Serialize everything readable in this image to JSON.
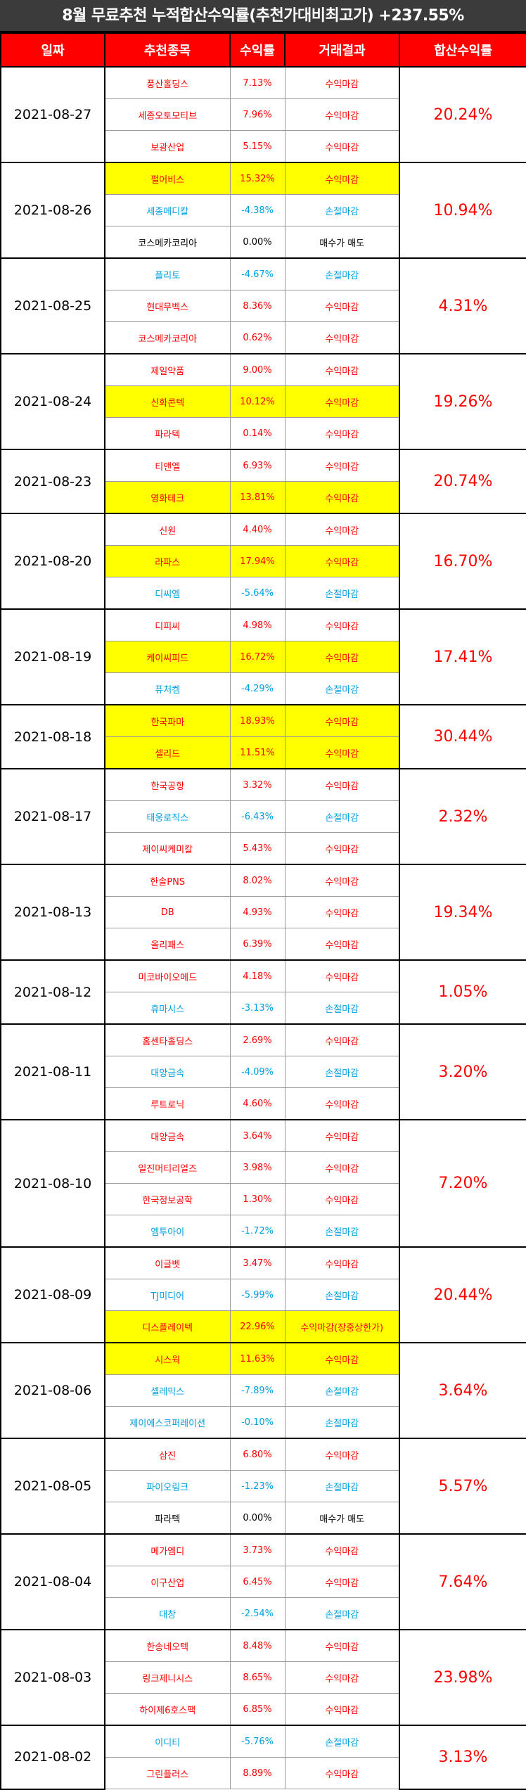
{
  "title": "8월 무료추천 누적합산수익률(추천가대비최고가) +237.55%",
  "headers": {
    "date": "일짜",
    "stock": "추천종목",
    "return": "수익률",
    "result": "거래결과",
    "sum": "합산수익률"
  },
  "colors": {
    "header_bg": "#ff0000",
    "title_bg": "#3b3b3b",
    "highlight": "#ffff00",
    "profit": "#ff0000",
    "loss": "#00a0e0"
  },
  "groups": [
    {
      "date": "2021-08-27",
      "sum": "20.24%",
      "rows": [
        {
          "stock": "풍산홀딩스",
          "ret": "7.13%",
          "result": "수익마감",
          "tone": "red",
          "hl": false
        },
        {
          "stock": "세종오토모티브",
          "ret": "7.96%",
          "result": "수익마감",
          "tone": "red",
          "hl": false
        },
        {
          "stock": "보광산업",
          "ret": "5.15%",
          "result": "수익마감",
          "tone": "red",
          "hl": false
        }
      ]
    },
    {
      "date": "2021-08-26",
      "sum": "10.94%",
      "rows": [
        {
          "stock": "펄어비스",
          "ret": "15.32%",
          "result": "수익마감",
          "tone": "red",
          "hl": true
        },
        {
          "stock": "세종메디칼",
          "ret": "-4.38%",
          "result": "손절마감",
          "tone": "blue",
          "hl": false
        },
        {
          "stock": "코스메카코리아",
          "ret": "0.00%",
          "result": "매수가 매도",
          "tone": "black",
          "hl": false
        }
      ]
    },
    {
      "date": "2021-08-25",
      "sum": "4.31%",
      "rows": [
        {
          "stock": "플리토",
          "ret": "-4.67%",
          "result": "손절마감",
          "tone": "blue",
          "hl": false
        },
        {
          "stock": "현대무벡스",
          "ret": "8.36%",
          "result": "수익마감",
          "tone": "red",
          "hl": false
        },
        {
          "stock": "코스메카코리아",
          "ret": "0.62%",
          "result": "수익마감",
          "tone": "red",
          "hl": false
        }
      ]
    },
    {
      "date": "2021-08-24",
      "sum": "19.26%",
      "rows": [
        {
          "stock": "제일약품",
          "ret": "9.00%",
          "result": "수익마감",
          "tone": "red",
          "hl": false
        },
        {
          "stock": "신화콘텍",
          "ret": "10.12%",
          "result": "수익마감",
          "tone": "red",
          "hl": true
        },
        {
          "stock": "파라텍",
          "ret": "0.14%",
          "result": "수익마감",
          "tone": "red",
          "hl": false
        }
      ]
    },
    {
      "date": "2021-08-23",
      "sum": "20.74%",
      "rows": [
        {
          "stock": "티앤엘",
          "ret": "6.93%",
          "result": "수익마감",
          "tone": "red",
          "hl": false
        },
        {
          "stock": "영화테크",
          "ret": "13.81%",
          "result": "수익마감",
          "tone": "red",
          "hl": true
        }
      ]
    },
    {
      "date": "2021-08-20",
      "sum": "16.70%",
      "rows": [
        {
          "stock": "신원",
          "ret": "4.40%",
          "result": "수익마감",
          "tone": "red",
          "hl": false
        },
        {
          "stock": "라파스",
          "ret": "17.94%",
          "result": "수익마감",
          "tone": "red",
          "hl": true
        },
        {
          "stock": "디씨엠",
          "ret": "-5.64%",
          "result": "손절마감",
          "tone": "blue",
          "hl": false
        }
      ]
    },
    {
      "date": "2021-08-19",
      "sum": "17.41%",
      "rows": [
        {
          "stock": "디피씨",
          "ret": "4.98%",
          "result": "수익마감",
          "tone": "red",
          "hl": false
        },
        {
          "stock": "케이씨피드",
          "ret": "16.72%",
          "result": "수익마감",
          "tone": "red",
          "hl": true
        },
        {
          "stock": "퓨처켐",
          "ret": "-4.29%",
          "result": "손절마감",
          "tone": "blue",
          "hl": false
        }
      ]
    },
    {
      "date": "2021-08-18",
      "sum": "30.44%",
      "rows": [
        {
          "stock": "한국파마",
          "ret": "18.93%",
          "result": "수익마감",
          "tone": "red",
          "hl": true
        },
        {
          "stock": "셀리드",
          "ret": "11.51%",
          "result": "수익마감",
          "tone": "red",
          "hl": true
        }
      ]
    },
    {
      "date": "2021-08-17",
      "sum": "2.32%",
      "rows": [
        {
          "stock": "한국공항",
          "ret": "3.32%",
          "result": "수익마감",
          "tone": "red",
          "hl": false
        },
        {
          "stock": "태웅로직스",
          "ret": "-6.43%",
          "result": "손절마감",
          "tone": "blue",
          "hl": false
        },
        {
          "stock": "제이씨케미칼",
          "ret": "5.43%",
          "result": "수익마감",
          "tone": "red",
          "hl": false
        }
      ]
    },
    {
      "date": "2021-08-13",
      "sum": "19.34%",
      "rows": [
        {
          "stock": "한솔PNS",
          "ret": "8.02%",
          "result": "수익마감",
          "tone": "red",
          "hl": false
        },
        {
          "stock": "DB",
          "ret": "4.93%",
          "result": "수익마감",
          "tone": "red",
          "hl": false
        },
        {
          "stock": "올리패스",
          "ret": "6.39%",
          "result": "수익마감",
          "tone": "red",
          "hl": false
        }
      ]
    },
    {
      "date": "2021-08-12",
      "sum": "1.05%",
      "rows": [
        {
          "stock": "미코바이오메드",
          "ret": "4.18%",
          "result": "수익마감",
          "tone": "red",
          "hl": false
        },
        {
          "stock": "휴마시스",
          "ret": "-3.13%",
          "result": "손절마감",
          "tone": "blue",
          "hl": false
        }
      ]
    },
    {
      "date": "2021-08-11",
      "sum": "3.20%",
      "rows": [
        {
          "stock": "홈센타홀딩스",
          "ret": "2.69%",
          "result": "수익마감",
          "tone": "red",
          "hl": false
        },
        {
          "stock": "대양금속",
          "ret": "-4.09%",
          "result": "손절마감",
          "tone": "blue",
          "hl": false
        },
        {
          "stock": "루트로닉",
          "ret": "4.60%",
          "result": "수익마감",
          "tone": "red",
          "hl": false
        }
      ]
    },
    {
      "date": "2021-08-10",
      "sum": "7.20%",
      "rows": [
        {
          "stock": "대양금속",
          "ret": "3.64%",
          "result": "수익마감",
          "tone": "red",
          "hl": false
        },
        {
          "stock": "일진머티리얼즈",
          "ret": "3.98%",
          "result": "수익마감",
          "tone": "red",
          "hl": false
        },
        {
          "stock": "한국정보공학",
          "ret": "1.30%",
          "result": "수익마감",
          "tone": "red",
          "hl": false
        },
        {
          "stock": "엠투아이",
          "ret": "-1.72%",
          "result": "손절마감",
          "tone": "blue",
          "hl": false
        }
      ]
    },
    {
      "date": "2021-08-09",
      "sum": "20.44%",
      "rows": [
        {
          "stock": "이글벳",
          "ret": "3.47%",
          "result": "수익마감",
          "tone": "red",
          "hl": false
        },
        {
          "stock": "TJ미디어",
          "ret": "-5.99%",
          "result": "손절마감",
          "tone": "blue",
          "hl": false
        },
        {
          "stock": "디스플레이텍",
          "ret": "22.96%",
          "result": "수익마감(장중상한가)",
          "tone": "red",
          "hl": true
        }
      ]
    },
    {
      "date": "2021-08-06",
      "sum": "3.64%",
      "rows": [
        {
          "stock": "시스웍",
          "ret": "11.63%",
          "result": "수익마감",
          "tone": "red",
          "hl": true
        },
        {
          "stock": "셀레믹스",
          "ret": "-7.89%",
          "result": "손절마감",
          "tone": "blue",
          "hl": false
        },
        {
          "stock": "제이에스코퍼레이션",
          "ret": "-0.10%",
          "result": "손절마감",
          "tone": "blue",
          "hl": false
        }
      ]
    },
    {
      "date": "2021-08-05",
      "sum": "5.57%",
      "rows": [
        {
          "stock": "삼진",
          "ret": "6.80%",
          "result": "수익마감",
          "tone": "red",
          "hl": false
        },
        {
          "stock": "파이오링크",
          "ret": "-1.23%",
          "result": "손절마감",
          "tone": "blue",
          "hl": false
        },
        {
          "stock": "파라텍",
          "ret": "0.00%",
          "result": "매수가 매도",
          "tone": "black",
          "hl": false
        }
      ]
    },
    {
      "date": "2021-08-04",
      "sum": "7.64%",
      "rows": [
        {
          "stock": "메가엠디",
          "ret": "3.73%",
          "result": "수익마감",
          "tone": "red",
          "hl": false
        },
        {
          "stock": "이구산업",
          "ret": "6.45%",
          "result": "수익마감",
          "tone": "red",
          "hl": false
        },
        {
          "stock": "대창",
          "ret": "-2.54%",
          "result": "손절마감",
          "tone": "blue",
          "hl": false
        }
      ]
    },
    {
      "date": "2021-08-03",
      "sum": "23.98%",
      "rows": [
        {
          "stock": "한송네오텍",
          "ret": "8.48%",
          "result": "수익마감",
          "tone": "red",
          "hl": false
        },
        {
          "stock": "링크제니시스",
          "ret": "8.65%",
          "result": "수익마감",
          "tone": "red",
          "hl": false
        },
        {
          "stock": "하이제6호스팩",
          "ret": "6.85%",
          "result": "수익마감",
          "tone": "red",
          "hl": false
        }
      ]
    },
    {
      "date": "2021-08-02",
      "sum": "3.13%",
      "rows": [
        {
          "stock": "이디티",
          "ret": "-5.76%",
          "result": "손절마감",
          "tone": "blue",
          "hl": false
        },
        {
          "stock": "그린플러스",
          "ret": "8.89%",
          "result": "수익마감",
          "tone": "red",
          "hl": false
        }
      ]
    }
  ]
}
